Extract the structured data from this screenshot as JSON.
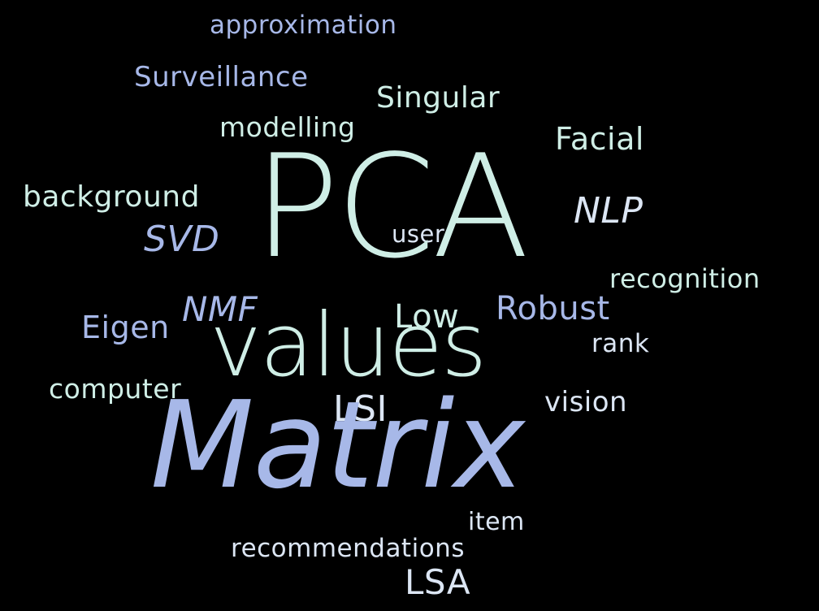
{
  "background_color": "#000000",
  "palette": {
    "mint": "#cfeee6",
    "blue": "#a7b8e8",
    "light": "#dce6f4"
  },
  "words": {
    "approximation": "approximation",
    "surveillance": "Surveillance",
    "singular": "Singular",
    "modelling": "modelling",
    "facial": "Facial",
    "pca": "PCA",
    "background": "background",
    "nlp": "NLP",
    "svd": "SVD",
    "user": "user",
    "recognition": "recognition",
    "nmf": "NMF",
    "robust": "Robust",
    "eigen": "Eigen",
    "low": "Low",
    "values": "values",
    "rank": "rank",
    "computer": "computer",
    "vision": "vision",
    "lsi": "LSI",
    "matrix": "Matrix",
    "item": "item",
    "recommendations": "recommendations",
    "lsa": "LSA"
  }
}
